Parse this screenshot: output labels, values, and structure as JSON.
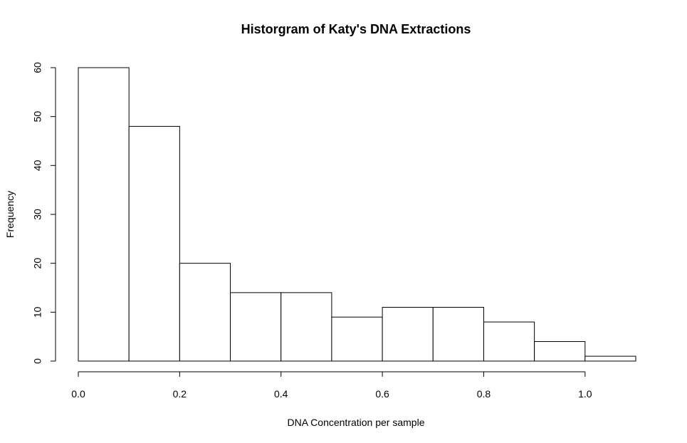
{
  "chart_data": {
    "type": "bar",
    "subtype": "histogram",
    "title": "Historgram of Katy's DNA Extractions",
    "xlabel": "DNA Concentration per sample",
    "ylabel": "Frequency",
    "bin_edges": [
      0.0,
      0.1,
      0.2,
      0.3,
      0.4,
      0.5,
      0.6,
      0.7,
      0.8,
      0.9,
      1.0,
      1.1
    ],
    "values": [
      60,
      48,
      20,
      14,
      14,
      9,
      11,
      11,
      8,
      4,
      1
    ],
    "xlim": [
      0.0,
      1.1
    ],
    "ylim": [
      0,
      60
    ],
    "x_ticks": [
      "0.0",
      "0.2",
      "0.4",
      "0.6",
      "0.8",
      "1.0"
    ],
    "y_ticks": [
      "0",
      "10",
      "20",
      "30",
      "40",
      "50",
      "60"
    ],
    "grid": false,
    "legend": "none",
    "colors": {
      "bar_fill": "#ffffff",
      "bar_stroke": "#000000",
      "background": "#ffffff"
    }
  }
}
